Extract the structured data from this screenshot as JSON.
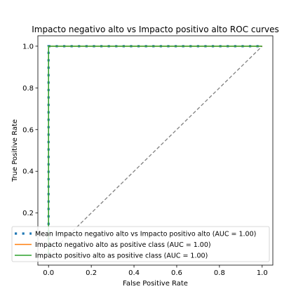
{
  "chart_data": {
    "type": "line",
    "title": "Impacto negativo alto vs Impacto positivo alto ROC curves",
    "xlabel": "False Positive Rate",
    "ylabel": "True Positive Rate",
    "xlim": [
      -0.05,
      1.05
    ],
    "ylim": [
      -0.05,
      1.05
    ],
    "xticks": [
      "0.0",
      "0.2",
      "0.4",
      "0.6",
      "0.8",
      "1.0"
    ],
    "yticks": [
      "0.2",
      "0.4",
      "0.6",
      "0.8",
      "1.0"
    ],
    "xtick_values": [
      0.0,
      0.2,
      0.4,
      0.6,
      0.8,
      1.0
    ],
    "ytick_values": [
      0.2,
      0.4,
      0.6,
      0.8,
      1.0
    ],
    "grid": false,
    "legend_position": "bottom-left",
    "chance_line": {
      "x": [
        0,
        1
      ],
      "y": [
        0,
        1
      ],
      "color": "#808080"
    },
    "series": [
      {
        "name": "Mean Impacto negativo alto vs Impacto positivo alto (AUC = 1.00)",
        "style": "dotted",
        "color": "#1f77b4",
        "x": [
          0.0,
          0.0,
          0.04,
          0.08,
          0.12,
          0.16,
          0.2,
          0.24,
          0.28,
          0.32,
          0.36,
          0.4,
          0.44,
          0.48,
          0.52,
          0.56,
          0.6,
          0.64,
          0.68,
          0.72,
          0.76,
          0.8,
          0.84,
          0.88,
          0.92,
          0.96,
          1.0
        ],
        "y": [
          0.0,
          1.0,
          1.0,
          1.0,
          1.0,
          1.0,
          1.0,
          1.0,
          1.0,
          1.0,
          1.0,
          1.0,
          1.0,
          1.0,
          1.0,
          1.0,
          1.0,
          1.0,
          1.0,
          1.0,
          1.0,
          1.0,
          1.0,
          1.0,
          1.0,
          1.0,
          1.0
        ]
      },
      {
        "name": "Impacto negativo alto as positive class (AUC = 1.00)",
        "style": "solid",
        "color": "#ff7f0e",
        "x": [
          0.0,
          0.0,
          1.0
        ],
        "y": [
          0.0,
          1.0,
          1.0
        ]
      },
      {
        "name": "Impacto positivo alto as positive class (AUC = 1.00)",
        "style": "solid",
        "color": "#2ca02c",
        "x": [
          0.0,
          0.0,
          1.0
        ],
        "y": [
          0.0,
          1.0,
          1.0
        ]
      }
    ]
  }
}
